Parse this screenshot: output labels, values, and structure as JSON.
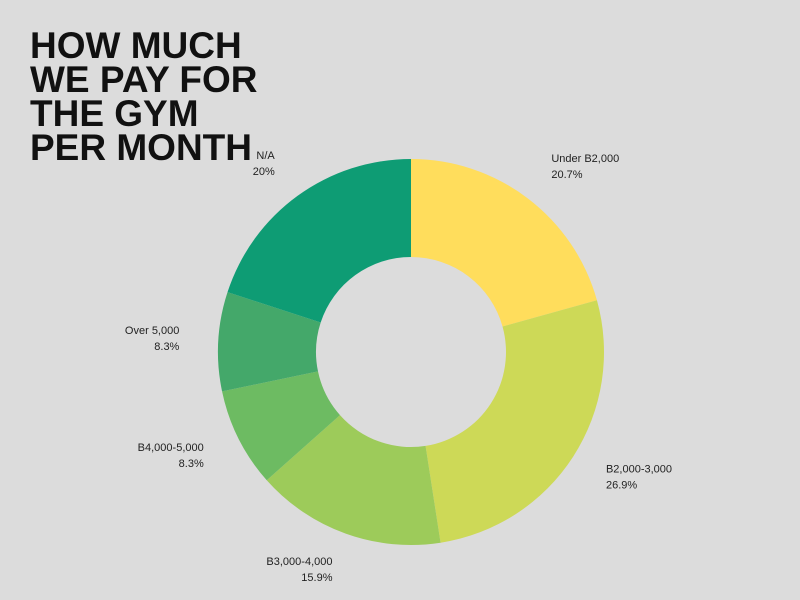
{
  "chart_data": {
    "type": "donut",
    "title": [
      "HOW MUCH",
      "WE PAY FOR",
      "THE GYM",
      "PER MONTH"
    ],
    "categories": [
      "Under B2,000",
      "B2,000-3,000",
      "B3,000-4,000",
      "B4,000-5,000",
      "Over 5,000",
      "N/A"
    ],
    "values": [
      20.7,
      26.9,
      15.9,
      8.3,
      8.3,
      20
    ],
    "value_labels": [
      "20.7%",
      "26.9%",
      "15.9%",
      "8.3%",
      "8.3%",
      "20%"
    ],
    "colors": [
      "#ffdd5c",
      "#cdd957",
      "#9dcb5a",
      "#6dbb62",
      "#44a86a",
      "#0e9c74"
    ]
  }
}
